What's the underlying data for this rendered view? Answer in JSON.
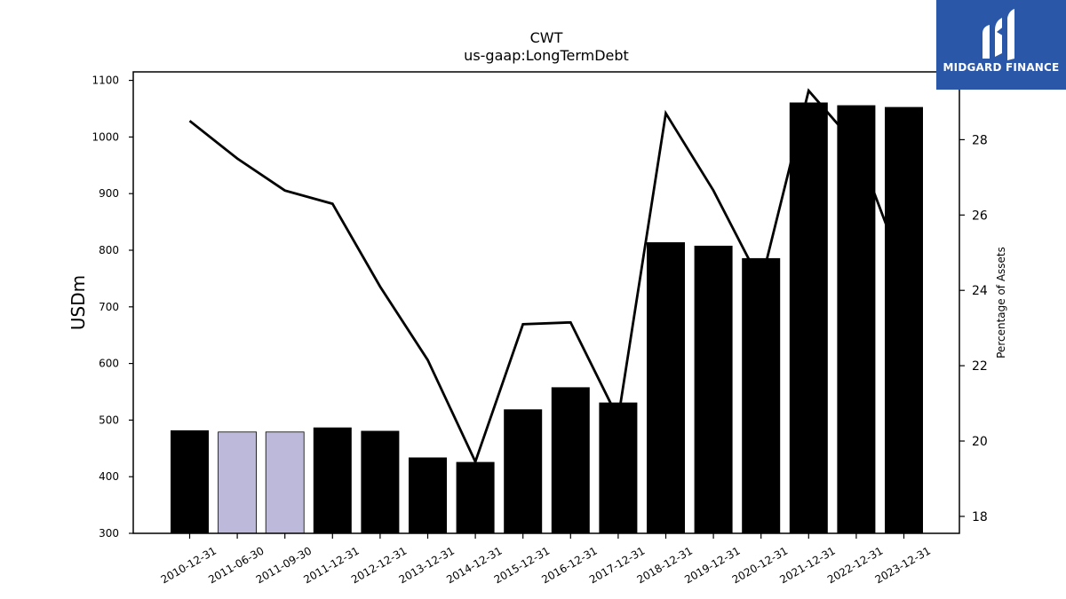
{
  "colors": {
    "bar_actual": "#000000",
    "bar_estimated": "#bcb9da",
    "line": "#000000",
    "logo_bg": "#2b57a8"
  },
  "logo": {
    "text": "MIDGARD FINANCE",
    "icon": "midgard-logo-icon"
  },
  "chart_data": {
    "type": "bar",
    "title": "CWT",
    "subtitle": "us-gaap:LongTermDebt",
    "ylabel": "USDm",
    "y2label": "Percentage of Assets",
    "ylim": [
      300,
      1115
    ],
    "y2lim": [
      17.55,
      29.8
    ],
    "yticks": [
      300,
      400,
      500,
      600,
      700,
      800,
      900,
      1000,
      1100
    ],
    "y2ticks": [
      18,
      20,
      22,
      24,
      26,
      28
    ],
    "grid": false,
    "categories": [
      "2010-12-31",
      "2011-06-30",
      "2011-09-30",
      "2011-12-31",
      "2012-12-31",
      "2013-12-31",
      "2014-12-31",
      "2015-12-31",
      "2016-12-31",
      "2017-12-31",
      "2018-12-31",
      "2019-12-31",
      "2020-12-31",
      "2021-12-31",
      "2022-12-31",
      "2023-12-31"
    ],
    "series": [
      {
        "kind": "bar",
        "axis": "left",
        "values": [
          482,
          479,
          479,
          487,
          481,
          434,
          426,
          519,
          558,
          531,
          814,
          808,
          786,
          1061,
          1056,
          1053
        ],
        "estimated": [
          false,
          true,
          true,
          false,
          false,
          false,
          false,
          false,
          false,
          false,
          false,
          false,
          false,
          false,
          false,
          false
        ]
      },
      {
        "kind": "line",
        "axis": "right",
        "values": [
          28.5,
          27.5,
          26.65,
          26.3,
          24.1,
          22.15,
          19.45,
          23.1,
          23.15,
          20.6,
          28.7,
          26.65,
          24.2,
          29.3,
          27.85,
          24.5
        ]
      }
    ]
  }
}
